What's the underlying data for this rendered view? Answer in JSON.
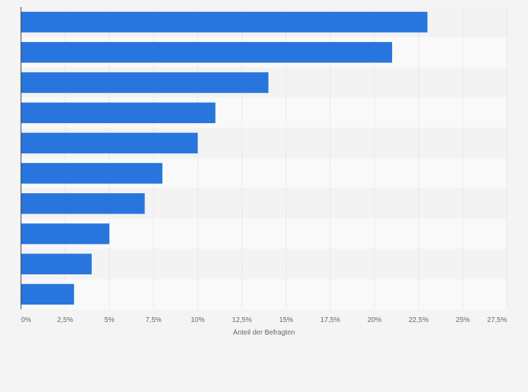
{
  "chart_data": {
    "type": "bar",
    "orientation": "horizontal",
    "title": "",
    "xlabel": "Anteil der Befragten",
    "ylabel": "",
    "categories": [
      "",
      "",
      "",
      "",
      "",
      "",
      "",
      "",
      "",
      ""
    ],
    "values": [
      23,
      21,
      14,
      11,
      10,
      8,
      7,
      5,
      4,
      3
    ],
    "xlim": [
      0,
      27.5
    ],
    "tick_values": [
      0,
      2.5,
      5,
      7.5,
      10,
      12.5,
      15,
      17.5,
      20,
      22.5,
      25,
      27.5
    ],
    "tick_labels": [
      "0%",
      "2,5%",
      "5%",
      "7,5%",
      "10%",
      "12,5%",
      "15%",
      "17,5%",
      "20%",
      "22,5%",
      "25%",
      "27,5%"
    ],
    "grid": true,
    "legend": "none"
  },
  "colors": {
    "bar": "#2876dd",
    "background": "#f4f4f4",
    "band_light": "#f9f9f9",
    "band_dark": "#f3f3f3",
    "grid": "#dcdcdc",
    "axis": "#333333",
    "text": "#666666"
  }
}
